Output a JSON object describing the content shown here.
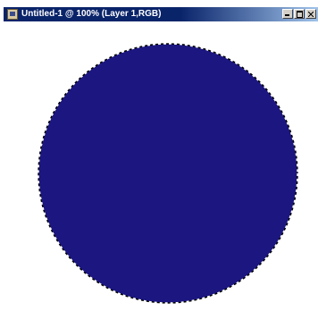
{
  "window": {
    "title": "Untitled-1 @ 100% (Layer 1,RGB)"
  },
  "colors": {
    "titlebar": "#0a246a",
    "circle_fill": "#1b1680",
    "canvas_bg": "#ffffff"
  },
  "icons": {
    "app": "document-icon",
    "minimize": "minimize-icon",
    "maximize": "maximize-icon",
    "close": "close-icon"
  }
}
